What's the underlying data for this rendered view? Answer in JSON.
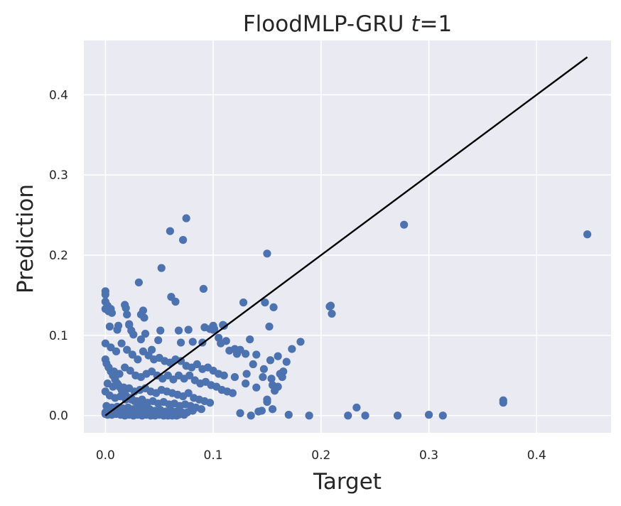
{
  "chart_data": {
    "type": "scatter",
    "title_main": "FloodMLP-GRU ",
    "title_var": "t",
    "title_suffix": "=1",
    "xlabel": "Target",
    "ylabel": "Prediction",
    "xlim": [
      -0.02,
      0.469
    ],
    "ylim": [
      -0.0215,
      0.4677
    ],
    "xticks": [
      0.0,
      0.1,
      0.2,
      0.3,
      0.4
    ],
    "xtick_labels": [
      "0.0",
      "0.1",
      "0.2",
      "0.3",
      "0.4"
    ],
    "yticks": [
      0.0,
      0.1,
      0.2,
      0.3,
      0.4
    ],
    "ytick_labels": [
      "0.0",
      "0.1",
      "0.2",
      "0.3",
      "0.4"
    ],
    "grid": true,
    "background": "#eaeaf2",
    "point_color": "#4c72b0",
    "line_color": "#000000",
    "identity_line": {
      "x": [
        0.0,
        0.447
      ],
      "y": [
        0.0,
        0.447
      ]
    },
    "points": {
      "x": [
        0.0,
        0.0,
        0.0,
        0.0,
        0.002,
        0.005,
        0.003,
        0.006,
        0.004,
        0.011,
        0.012,
        0.018,
        0.019,
        0.02,
        0.022,
        0.024,
        0.022,
        0.026,
        0.031,
        0.033,
        0.035,
        0.036,
        0.037,
        0.033,
        0.043,
        0.049,
        0.051,
        0.052,
        0.06,
        0.061,
        0.065,
        0.068,
        0.07,
        0.072,
        0.075,
        0.077,
        0.081,
        0.09,
        0.091,
        0.092,
        0.097,
        0.1,
        0.1,
        0.101,
        0.105,
        0.107,
        0.109,
        0.11,
        0.112,
        0.115,
        0.12,
        0.122,
        0.125,
        0.128,
        0.13,
        0.131,
        0.134,
        0.137,
        0.14,
        0.146,
        0.147,
        0.148,
        0.15,
        0.152,
        0.153,
        0.154,
        0.155,
        0.156,
        0.158,
        0.16,
        0.162,
        0.164,
        0.165,
        0.168,
        0.173,
        0.181,
        0.208,
        0.209,
        0.21,
        0.277,
        0.447,
        0.369,
        0.369,
        0.15,
        0.157,
        0.125,
        0.135,
        0.142,
        0.145,
        0.15,
        0.155,
        0.16,
        0.17,
        0.189,
        0.225,
        0.233,
        0.241,
        0.271,
        0.3,
        0.313,
        0.0,
        0.005,
        0.01,
        0.015,
        0.02,
        0.025,
        0.03,
        0.035,
        0.04,
        0.045,
        0.05,
        0.055,
        0.06,
        0.065,
        0.07,
        0.075,
        0.08,
        0.085,
        0.09,
        0.095,
        0.1,
        0.105,
        0.11,
        0.12,
        0.13,
        0.14,
        0.003,
        0.008,
        0.013,
        0.018,
        0.023,
        0.028,
        0.033,
        0.038,
        0.043,
        0.048,
        0.053,
        0.058,
        0.063,
        0.068,
        0.073,
        0.078,
        0.083,
        0.088,
        0.093,
        0.098,
        0.103,
        0.108,
        0.113,
        0.118,
        0.002,
        0.007,
        0.012,
        0.017,
        0.022,
        0.027,
        0.032,
        0.037,
        0.042,
        0.047,
        0.052,
        0.057,
        0.062,
        0.067,
        0.072,
        0.077,
        0.082,
        0.087,
        0.092,
        0.097,
        0.0,
        0.004,
        0.009,
        0.014,
        0.019,
        0.024,
        0.029,
        0.034,
        0.039,
        0.044,
        0.049,
        0.054,
        0.059,
        0.064,
        0.069,
        0.074,
        0.079,
        0.084,
        0.089,
        0.001,
        0.006,
        0.011,
        0.016,
        0.021,
        0.026,
        0.031,
        0.036,
        0.041,
        0.046,
        0.051,
        0.056,
        0.061,
        0.066,
        0.071,
        0.076,
        0.081,
        0.0,
        0.003,
        0.008,
        0.013,
        0.018,
        0.023,
        0.028,
        0.033,
        0.038,
        0.043,
        0.048,
        0.053,
        0.058,
        0.063,
        0.068,
        0.073,
        0.0,
        0.002,
        0.006,
        0.01,
        0.014,
        0.018,
        0.022,
        0.026,
        0.03,
        0.034,
        0.038,
        0.042,
        0.046,
        0.05,
        0.054,
        0.058,
        0.062,
        0.066,
        0.0,
        0.001,
        0.003,
        0.005,
        0.007,
        0.009,
        0.011,
        0.013,
        0.015,
        0.017,
        0.019,
        0.021,
        0.024,
        0.027,
        0.03,
        0.033,
        0.036,
        0.039
      ],
      "y": [
        0.155,
        0.151,
        0.142,
        0.133,
        0.137,
        0.133,
        0.13,
        0.128,
        0.111,
        0.107,
        0.112,
        0.138,
        0.134,
        0.126,
        0.114,
        0.106,
        0.113,
        0.101,
        0.166,
        0.126,
        0.131,
        0.122,
        0.102,
        0.095,
        0.082,
        0.094,
        0.106,
        0.184,
        0.23,
        0.148,
        0.142,
        0.106,
        0.091,
        0.219,
        0.246,
        0.107,
        0.092,
        0.091,
        0.158,
        0.11,
        0.108,
        0.112,
        0.107,
        0.108,
        0.097,
        0.09,
        0.113,
        0.112,
        0.093,
        0.081,
        0.083,
        0.077,
        0.082,
        0.141,
        0.077,
        0.052,
        0.095,
        0.064,
        0.076,
        0.048,
        0.058,
        0.141,
        0.202,
        0.111,
        0.069,
        0.046,
        0.038,
        0.135,
        0.034,
        0.074,
        0.052,
        0.048,
        0.055,
        0.067,
        0.083,
        0.092,
        0.136,
        0.137,
        0.127,
        0.238,
        0.226,
        0.019,
        0.016,
        0.02,
        0.031,
        0.003,
        0.0,
        0.005,
        0.006,
        0.017,
        0.008,
        0.036,
        0.001,
        0.0,
        0.0,
        0.01,
        0.0,
        0.0,
        0.001,
        0.0,
        0.09,
        0.085,
        0.08,
        0.09,
        0.082,
        0.076,
        0.07,
        0.08,
        0.075,
        0.07,
        0.072,
        0.068,
        0.066,
        0.07,
        0.068,
        0.062,
        0.06,
        0.064,
        0.058,
        0.06,
        0.056,
        0.052,
        0.05,
        0.048,
        0.04,
        0.035,
        0.06,
        0.055,
        0.052,
        0.06,
        0.056,
        0.05,
        0.048,
        0.052,
        0.055,
        0.05,
        0.046,
        0.05,
        0.045,
        0.05,
        0.046,
        0.05,
        0.044,
        0.04,
        0.042,
        0.038,
        0.036,
        0.032,
        0.03,
        0.028,
        0.04,
        0.036,
        0.038,
        0.035,
        0.034,
        0.03,
        0.032,
        0.034,
        0.03,
        0.028,
        0.032,
        0.03,
        0.028,
        0.026,
        0.024,
        0.028,
        0.022,
        0.02,
        0.018,
        0.016,
        0.03,
        0.025,
        0.022,
        0.024,
        0.02,
        0.022,
        0.018,
        0.02,
        0.016,
        0.018,
        0.015,
        0.017,
        0.014,
        0.015,
        0.012,
        0.014,
        0.012,
        0.01,
        0.008,
        0.012,
        0.01,
        0.011,
        0.009,
        0.01,
        0.008,
        0.009,
        0.007,
        0.008,
        0.006,
        0.007,
        0.005,
        0.006,
        0.005,
        0.004,
        0.004,
        0.006,
        0.004,
        0.005,
        0.004,
        0.003,
        0.004,
        0.003,
        0.002,
        0.003,
        0.002,
        0.003,
        0.002,
        0.002,
        0.001,
        0.002,
        0.001,
        0.001,
        0.002,
        0.001,
        0.001,
        0.002,
        0.001,
        0.0,
        0.001,
        0.0,
        0.001,
        0.0,
        0.001,
        0.0,
        0.0,
        0.001,
        0.0,
        0.0,
        0.0,
        0.0,
        0.07,
        0.065,
        0.06,
        0.055,
        0.05,
        0.045,
        0.04,
        0.036,
        0.032,
        0.028,
        0.025,
        0.022,
        0.02,
        0.018,
        0.015,
        0.012,
        0.01,
        0.008
      ]
    }
  }
}
